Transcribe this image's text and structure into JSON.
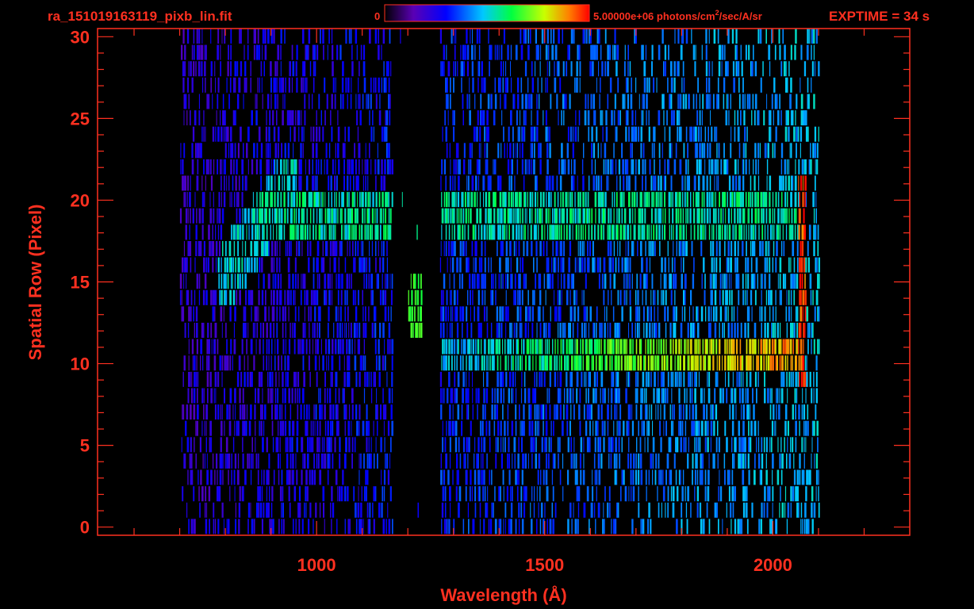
{
  "header": {
    "filename": "ra_151019163119_pixb_lin.fit",
    "exptime": "EXPTIME = 34 s"
  },
  "colorbar": {
    "min_label": "0",
    "max_label": "5.00000e+06 photons/cm",
    "max_label_sup": "2",
    "max_label_tail": "/sec/A/sr",
    "colors": [
      "#000000",
      "#5a00b4",
      "#0000ff",
      "#00c8ff",
      "#00ff40",
      "#c8ff00",
      "#ff8000",
      "#ff0000"
    ]
  },
  "colors": {
    "axis": "#ff3020",
    "background": "#000000"
  },
  "chart_data": {
    "type": "heatmap",
    "title": "ra_151019163119_pixb_lin.fit",
    "xlabel": "Wavelength (Å)",
    "ylabel": "Spatial Row (Pixel)",
    "xlim": [
      520,
      2300
    ],
    "ylim": [
      -0.5,
      30.5
    ],
    "xticks": [
      1000,
      1500,
      2000
    ],
    "yticks": [
      0,
      5,
      10,
      15,
      20,
      25,
      30
    ],
    "colorbar_range": [
      0,
      5000000
    ],
    "data_x_range": [
      700,
      2100
    ],
    "gap_x_range": [
      1165,
      1270
    ],
    "features": [
      {
        "label": "band row 19-20",
        "x": [
          860,
          2060
        ],
        "y": [
          18,
          21
        ],
        "level": 0.55
      },
      {
        "label": "band row 10-11",
        "x": [
          1270,
          2065
        ],
        "y": [
          10,
          12
        ],
        "level": 0.85
      },
      {
        "label": "curved band",
        "x": [
          780,
          960
        ],
        "y": [
          14,
          23
        ],
        "level": 0.5
      },
      {
        "label": "line 1216",
        "x": [
          1200,
          1230
        ],
        "y": [
          12,
          16
        ],
        "level": 0.65
      },
      {
        "label": "emission 2060",
        "x": [
          2055,
          2070
        ],
        "y": [
          9,
          22
        ],
        "level": 0.95
      }
    ]
  }
}
